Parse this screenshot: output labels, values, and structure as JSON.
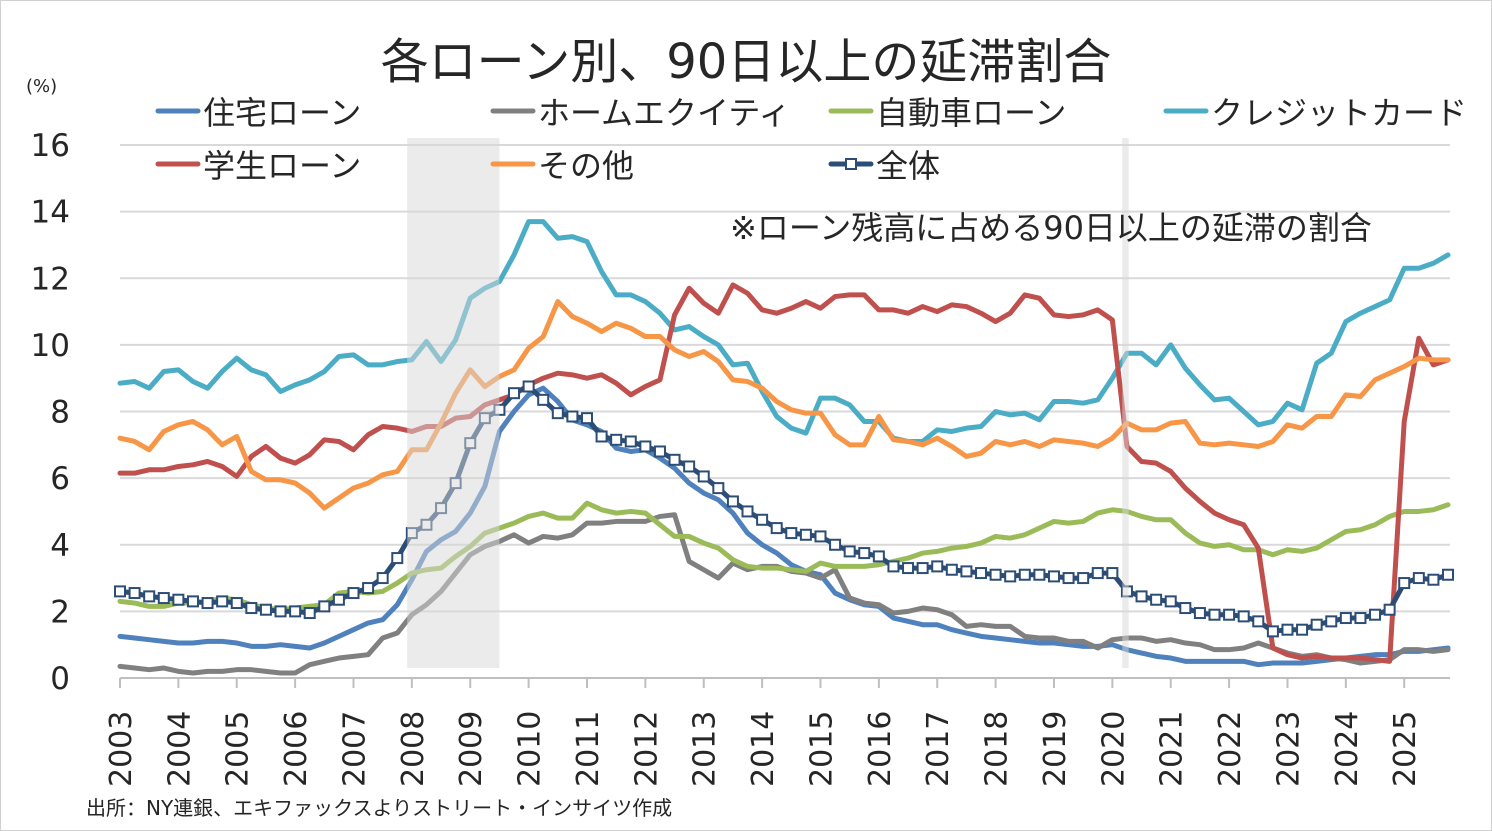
{
  "chart_data": {
    "type": "line",
    "title": "各ローン別、90日以上の延滞割合",
    "ylabel": "(%)",
    "annotation": "※ローン残高に占める90日以上の延滞の割合",
    "source": "出所：NY連銀、エキファックスよりストリート・インサイツ作成",
    "x_frequency": "quarterly",
    "x_start": 2003,
    "xlim": [
      2003,
      2025.75
    ],
    "ylim": [
      0,
      16
    ],
    "y_ticks": [
      "0",
      "2",
      "4",
      "6",
      "8",
      "10",
      "12",
      "14",
      "16"
    ],
    "x_ticks": [
      "2003",
      "2004",
      "2005",
      "2006",
      "2007",
      "2008",
      "2009",
      "2010",
      "2011",
      "2012",
      "2013",
      "2014",
      "2015",
      "2016",
      "2017",
      "2018",
      "2019",
      "2020",
      "2021",
      "2022",
      "2023",
      "2024",
      "2025"
    ],
    "grid": "horizontal",
    "legend_placement": "top",
    "shaded_periods": [
      [
        2007.92,
        2009.5
      ],
      [
        2020.17,
        2020.28
      ]
    ],
    "series": [
      {
        "name": "住宅ローン",
        "color": "#4F81BD",
        "values": [
          1.25,
          1.2,
          1.15,
          1.1,
          1.05,
          1.05,
          1.1,
          1.1,
          1.05,
          0.95,
          0.95,
          1.0,
          0.95,
          0.9,
          1.05,
          1.25,
          1.45,
          1.65,
          1.75,
          2.2,
          2.95,
          3.8,
          4.15,
          4.4,
          4.95,
          5.75,
          7.4,
          8.0,
          8.5,
          8.7,
          8.3,
          7.75,
          7.6,
          7.4,
          6.9,
          6.8,
          6.85,
          6.6,
          6.3,
          5.85,
          5.55,
          5.35,
          4.95,
          4.35,
          4.0,
          3.75,
          3.4,
          3.2,
          3.1,
          2.55,
          2.35,
          2.2,
          2.15,
          1.8,
          1.7,
          1.6,
          1.6,
          1.45,
          1.35,
          1.25,
          1.2,
          1.15,
          1.1,
          1.05,
          1.05,
          1.0,
          0.95,
          0.95,
          1.0,
          0.85,
          0.75,
          0.65,
          0.6,
          0.5,
          0.5,
          0.5,
          0.5,
          0.5,
          0.4,
          0.45,
          0.45,
          0.45,
          0.5,
          0.55,
          0.6,
          0.65,
          0.7,
          0.7,
          0.8,
          0.8,
          0.85,
          0.9
        ]
      },
      {
        "name": "ホームエクイティ",
        "color": "#808080",
        "values": [
          0.35,
          0.3,
          0.25,
          0.3,
          0.2,
          0.15,
          0.2,
          0.2,
          0.25,
          0.25,
          0.2,
          0.15,
          0.15,
          0.4,
          0.5,
          0.6,
          0.65,
          0.7,
          1.2,
          1.35,
          1.9,
          2.2,
          2.6,
          3.15,
          3.7,
          3.95,
          4.1,
          4.3,
          4.05,
          4.25,
          4.2,
          4.3,
          4.65,
          4.65,
          4.7,
          4.7,
          4.7,
          4.85,
          4.9,
          3.5,
          3.25,
          3.0,
          3.45,
          3.25,
          3.35,
          3.35,
          3.2,
          3.15,
          3.0,
          3.25,
          2.4,
          2.25,
          2.2,
          1.95,
          2.0,
          2.1,
          2.05,
          1.9,
          1.55,
          1.6,
          1.55,
          1.55,
          1.25,
          1.2,
          1.2,
          1.1,
          1.1,
          0.9,
          1.15,
          1.2,
          1.2,
          1.1,
          1.15,
          1.05,
          1.0,
          0.85,
          0.85,
          0.9,
          1.05,
          0.9,
          0.75,
          0.65,
          0.7,
          0.6,
          0.55,
          0.45,
          0.5,
          0.55,
          0.85,
          0.85,
          0.8,
          0.85
        ]
      },
      {
        "name": "自動車ローン",
        "color": "#9BBB59",
        "values": [
          2.3,
          2.25,
          2.15,
          2.15,
          2.25,
          2.25,
          2.3,
          2.4,
          2.35,
          2.2,
          2.1,
          2.05,
          2.1,
          2.15,
          2.2,
          2.55,
          2.6,
          2.55,
          2.6,
          2.85,
          3.15,
          3.25,
          3.3,
          3.65,
          3.95,
          4.35,
          4.5,
          4.65,
          4.85,
          4.95,
          4.8,
          4.8,
          5.25,
          5.05,
          4.95,
          5.0,
          4.95,
          4.6,
          4.25,
          4.25,
          4.05,
          3.9,
          3.55,
          3.35,
          3.3,
          3.3,
          3.25,
          3.2,
          3.45,
          3.35,
          3.35,
          3.35,
          3.4,
          3.5,
          3.6,
          3.75,
          3.8,
          3.9,
          3.95,
          4.05,
          4.25,
          4.2,
          4.3,
          4.5,
          4.7,
          4.65,
          4.7,
          4.95,
          5.05,
          5.0,
          4.85,
          4.75,
          4.75,
          4.35,
          4.05,
          3.95,
          4.0,
          3.85,
          3.85,
          3.7,
          3.85,
          3.8,
          3.9,
          4.15,
          4.4,
          4.45,
          4.6,
          4.85,
          5.0,
          5.0,
          5.05,
          5.2
        ]
      },
      {
        "name": "クレジットカード",
        "color": "#4BACC6",
        "values": [
          8.85,
          8.9,
          8.7,
          9.2,
          9.25,
          8.9,
          8.7,
          9.2,
          9.6,
          9.25,
          9.1,
          8.6,
          8.8,
          8.95,
          9.2,
          9.65,
          9.7,
          9.4,
          9.4,
          9.5,
          9.55,
          10.1,
          9.5,
          10.15,
          11.4,
          11.7,
          11.9,
          12.7,
          13.7,
          13.7,
          13.2,
          13.25,
          13.1,
          12.2,
          11.5,
          11.5,
          11.3,
          10.95,
          10.45,
          10.55,
          10.25,
          10.0,
          9.4,
          9.45,
          8.6,
          7.85,
          7.5,
          7.35,
          8.4,
          8.4,
          8.2,
          7.7,
          7.7,
          7.2,
          7.1,
          7.1,
          7.45,
          7.4,
          7.5,
          7.55,
          8.0,
          7.9,
          7.95,
          7.75,
          8.3,
          8.3,
          8.25,
          8.35,
          9.0,
          9.75,
          9.75,
          9.4,
          10.0,
          9.3,
          8.8,
          8.35,
          8.4,
          8.0,
          7.6,
          7.7,
          8.25,
          8.05,
          9.45,
          9.75,
          10.7,
          10.95,
          11.15,
          11.35,
          12.3,
          12.3,
          12.45,
          12.7
        ]
      },
      {
        "name": "学生ローン",
        "color": "#C0504D",
        "values": [
          6.15,
          6.15,
          6.25,
          6.25,
          6.35,
          6.4,
          6.5,
          6.35,
          6.05,
          6.65,
          6.95,
          6.6,
          6.45,
          6.7,
          7.15,
          7.1,
          6.85,
          7.3,
          7.55,
          7.5,
          7.4,
          7.55,
          7.55,
          7.8,
          7.85,
          8.2,
          8.35,
          8.5,
          8.8,
          9.0,
          9.15,
          9.1,
          9.0,
          9.1,
          8.85,
          8.5,
          8.75,
          8.95,
          10.9,
          11.7,
          11.25,
          10.95,
          11.8,
          11.55,
          11.05,
          10.95,
          11.1,
          11.3,
          11.1,
          11.45,
          11.5,
          11.5,
          11.05,
          11.05,
          10.95,
          11.15,
          11.0,
          11.2,
          11.15,
          10.95,
          10.7,
          10.95,
          11.5,
          11.4,
          10.9,
          10.85,
          10.9,
          11.05,
          10.75,
          6.95,
          6.5,
          6.45,
          6.2,
          5.7,
          5.3,
          4.95,
          4.75,
          4.6,
          3.9,
          0.9,
          0.7,
          0.6,
          0.65,
          0.6,
          0.6,
          0.6,
          0.55,
          0.5,
          7.7,
          10.2,
          9.4,
          9.55
        ]
      },
      {
        "name": "その他",
        "color": "#F79646",
        "values": [
          7.2,
          7.1,
          6.85,
          7.4,
          7.6,
          7.7,
          7.45,
          7.0,
          7.25,
          6.2,
          5.95,
          5.95,
          5.85,
          5.55,
          5.1,
          5.4,
          5.7,
          5.85,
          6.1,
          6.2,
          6.85,
          6.85,
          7.65,
          8.55,
          9.25,
          8.75,
          9.05,
          9.25,
          9.9,
          10.25,
          11.3,
          10.85,
          10.65,
          10.4,
          10.65,
          10.5,
          10.25,
          10.25,
          9.85,
          9.65,
          9.8,
          9.5,
          8.95,
          8.9,
          8.7,
          8.3,
          8.05,
          7.95,
          7.95,
          7.3,
          7.0,
          7.0,
          7.85,
          7.15,
          7.1,
          7.0,
          7.2,
          6.95,
          6.65,
          6.75,
          7.1,
          7.0,
          7.1,
          6.95,
          7.15,
          7.1,
          7.05,
          6.95,
          7.2,
          7.65,
          7.45,
          7.45,
          7.65,
          7.7,
          7.05,
          7.0,
          7.05,
          7.0,
          6.95,
          7.1,
          7.6,
          7.5,
          7.85,
          7.85,
          8.5,
          8.45,
          8.95,
          9.15,
          9.35,
          9.6,
          9.55,
          9.55
        ]
      },
      {
        "name": "全体",
        "color": "#2C4D75",
        "marker": "square",
        "values": [
          2.6,
          2.55,
          2.45,
          2.4,
          2.35,
          2.3,
          2.25,
          2.3,
          2.25,
          2.1,
          2.05,
          2.0,
          2.0,
          1.95,
          2.15,
          2.35,
          2.55,
          2.7,
          3.0,
          3.6,
          4.35,
          4.6,
          5.1,
          5.85,
          7.05,
          7.8,
          8.05,
          8.55,
          8.75,
          8.35,
          7.95,
          7.85,
          7.8,
          7.25,
          7.15,
          7.1,
          6.95,
          6.8,
          6.55,
          6.35,
          6.05,
          5.7,
          5.3,
          5.0,
          4.75,
          4.5,
          4.35,
          4.3,
          4.25,
          4.0,
          3.8,
          3.75,
          3.65,
          3.35,
          3.3,
          3.3,
          3.35,
          3.25,
          3.2,
          3.15,
          3.1,
          3.05,
          3.1,
          3.1,
          3.05,
          3.0,
          3.0,
          3.15,
          3.15,
          2.6,
          2.45,
          2.35,
          2.3,
          2.1,
          1.95,
          1.9,
          1.9,
          1.85,
          1.7,
          1.4,
          1.45,
          1.45,
          1.6,
          1.7,
          1.8,
          1.8,
          1.9,
          2.05,
          2.85,
          3.0,
          2.95,
          3.1
        ]
      }
    ]
  }
}
